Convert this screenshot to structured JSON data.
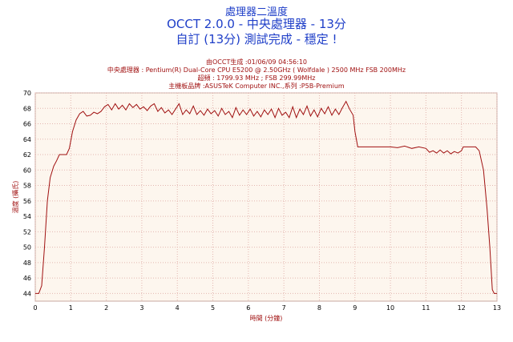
{
  "header": {
    "title_line1": "處理器二溫度",
    "title_line2": "OCCT 2.0.0 - 中央處理器 - 13分",
    "title_line3": "自訂 (13分) 測試完成 - 穩定 !"
  },
  "info": {
    "generated": "由OCCT生成 :01/06/09 04:56:10",
    "cpu": "中央處理器 : Pentium(R) Dual-Core CPU E5200 @ 2.50GHz ( Wolfdale ) 2500 MHz FSB 200MHz",
    "clock": "超頻 : 1799.93 MHz ; FSB 299.99MHz",
    "board": "主機板品牌 :ASUSTeK Computer INC.,系列 :P5B-Premium"
  },
  "colors": {
    "title": "#1e3ec8",
    "info": "#a01010",
    "line": "#a01010",
    "plot_bg": "#fdf6ee",
    "grid": "#e3b6b0"
  },
  "chart_data": {
    "type": "line",
    "title": "處理器二溫度",
    "xlabel": "時間 (分鐘)",
    "ylabel": "溫度 (攝氏)",
    "xlim": [
      0,
      13
    ],
    "ylim": [
      43,
      70
    ],
    "x_ticks": [
      "0",
      "1",
      "2",
      "3",
      "4",
      "5",
      "6",
      "7",
      "8",
      "9",
      "10",
      "11",
      "12",
      "13"
    ],
    "y_ticks": [
      "44",
      "46",
      "48",
      "50",
      "52",
      "54",
      "56",
      "58",
      "60",
      "62",
      "64",
      "66",
      "68",
      "70"
    ],
    "grid": true,
    "series": [
      {
        "points": [
          [
            0,
            44
          ],
          [
            0.1,
            44
          ],
          [
            0.18,
            45
          ],
          [
            0.26,
            50
          ],
          [
            0.34,
            56
          ],
          [
            0.42,
            59
          ],
          [
            0.52,
            60.5
          ],
          [
            0.6,
            61.2
          ],
          [
            0.68,
            62
          ],
          [
            0.78,
            62
          ],
          [
            0.88,
            62
          ],
          [
            0.96,
            62.8
          ],
          [
            1.05,
            65
          ],
          [
            1.15,
            66.5
          ],
          [
            1.25,
            67.3
          ],
          [
            1.35,
            67.6
          ],
          [
            1.45,
            67
          ],
          [
            1.55,
            67.1
          ],
          [
            1.65,
            67.5
          ],
          [
            1.75,
            67.3
          ],
          [
            1.85,
            67.6
          ],
          [
            1.95,
            68.2
          ],
          [
            2.05,
            68.5
          ],
          [
            2.15,
            67.8
          ],
          [
            2.25,
            68.6
          ],
          [
            2.35,
            67.9
          ],
          [
            2.45,
            68.4
          ],
          [
            2.55,
            67.8
          ],
          [
            2.65,
            68.6
          ],
          [
            2.75,
            68.1
          ],
          [
            2.85,
            68.5
          ],
          [
            2.95,
            67.9
          ],
          [
            3.05,
            68.2
          ],
          [
            3.15,
            67.7
          ],
          [
            3.25,
            68.3
          ],
          [
            3.35,
            68.6
          ],
          [
            3.45,
            67.6
          ],
          [
            3.55,
            68.1
          ],
          [
            3.65,
            67.4
          ],
          [
            3.75,
            67.8
          ],
          [
            3.85,
            67.2
          ],
          [
            3.95,
            67.9
          ],
          [
            4.05,
            68.6
          ],
          [
            4.15,
            67.2
          ],
          [
            4.25,
            67.8
          ],
          [
            4.35,
            67.3
          ],
          [
            4.45,
            68.3
          ],
          [
            4.55,
            67.2
          ],
          [
            4.65,
            67.7
          ],
          [
            4.75,
            67.1
          ],
          [
            4.85,
            67.9
          ],
          [
            4.95,
            67.3
          ],
          [
            5.05,
            67.7
          ],
          [
            5.15,
            67.0
          ],
          [
            5.25,
            68.0
          ],
          [
            5.35,
            67.2
          ],
          [
            5.45,
            67.6
          ],
          [
            5.55,
            66.8
          ],
          [
            5.65,
            68.1
          ],
          [
            5.75,
            67.1
          ],
          [
            5.85,
            67.8
          ],
          [
            5.95,
            67.2
          ],
          [
            6.05,
            67.9
          ],
          [
            6.15,
            67.0
          ],
          [
            6.25,
            67.6
          ],
          [
            6.35,
            66.9
          ],
          [
            6.45,
            67.8
          ],
          [
            6.55,
            67.2
          ],
          [
            6.65,
            67.9
          ],
          [
            6.75,
            66.8
          ],
          [
            6.85,
            68.0
          ],
          [
            6.95,
            67.1
          ],
          [
            7.05,
            67.5
          ],
          [
            7.15,
            66.8
          ],
          [
            7.25,
            68.2
          ],
          [
            7.35,
            66.8
          ],
          [
            7.45,
            67.9
          ],
          [
            7.55,
            67.2
          ],
          [
            7.65,
            68.3
          ],
          [
            7.75,
            67.0
          ],
          [
            7.85,
            67.8
          ],
          [
            7.95,
            66.9
          ],
          [
            8.05,
            68.0
          ],
          [
            8.15,
            67.3
          ],
          [
            8.25,
            68.2
          ],
          [
            8.35,
            67.1
          ],
          [
            8.45,
            67.9
          ],
          [
            8.55,
            67.2
          ],
          [
            8.65,
            68.1
          ],
          [
            8.75,
            68.9
          ],
          [
            8.85,
            67.9
          ],
          [
            8.95,
            67.1
          ],
          [
            9.0,
            65
          ],
          [
            9.08,
            63
          ],
          [
            9.2,
            63
          ],
          [
            9.5,
            63
          ],
          [
            9.8,
            63
          ],
          [
            10.0,
            63
          ],
          [
            10.2,
            62.9
          ],
          [
            10.4,
            63.1
          ],
          [
            10.6,
            62.8
          ],
          [
            10.8,
            63
          ],
          [
            11.0,
            62.8
          ],
          [
            11.1,
            62.3
          ],
          [
            11.2,
            62.5
          ],
          [
            11.3,
            62.2
          ],
          [
            11.4,
            62.6
          ],
          [
            11.5,
            62.2
          ],
          [
            11.6,
            62.5
          ],
          [
            11.7,
            62.1
          ],
          [
            11.8,
            62.4
          ],
          [
            11.9,
            62.2
          ],
          [
            12.0,
            62.5
          ],
          [
            12.05,
            63
          ],
          [
            12.2,
            63
          ],
          [
            12.4,
            63
          ],
          [
            12.5,
            62.5
          ],
          [
            12.62,
            60
          ],
          [
            12.72,
            55
          ],
          [
            12.8,
            50
          ],
          [
            12.87,
            44.5
          ],
          [
            12.92,
            44
          ],
          [
            13.0,
            44
          ]
        ]
      }
    ]
  }
}
